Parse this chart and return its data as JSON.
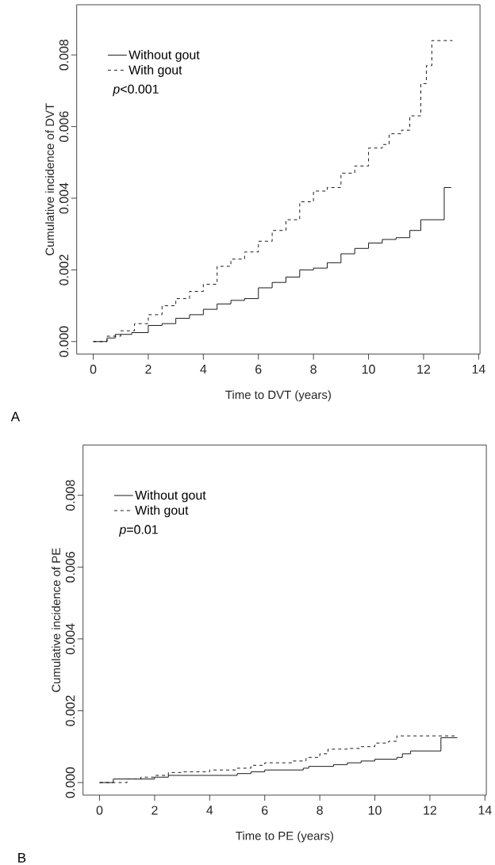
{
  "chart_data": [
    {
      "type": "step",
      "xlabel": "Time to DVT (years)",
      "ylabel": "Cumulative incidence of DVT",
      "annotations": [
        "*p*<0.001",
        "A"
      ],
      "xlim": [
        -0.6,
        14.05
      ],
      "ylim": [
        -0.00035,
        0.0094
      ],
      "xticks": [
        0,
        2,
        4,
        6,
        8,
        10,
        12,
        14
      ],
      "yticks": [
        {
          "value": 0,
          "label": "0.000"
        },
        {
          "value": 0.002,
          "label": "0.002"
        },
        {
          "value": 0.004,
          "label": "0.004"
        },
        {
          "value": 0.006,
          "label": "0.006"
        },
        {
          "value": 0.008,
          "label": "0.008"
        }
      ],
      "legend": "top left",
      "grid": false,
      "series": [
        {
          "name": "Without gout",
          "color": "#000000",
          "line_style": "solid",
          "x": [
            0,
            0.5,
            0.8,
            1.4,
            2,
            2.5,
            3,
            3.5,
            4,
            4.5,
            5,
            5.5,
            6,
            6.5,
            7,
            7.5,
            8,
            8.5,
            9,
            9.5,
            10,
            10.5,
            11,
            11.5,
            11.9,
            12.75,
            13
          ],
          "values": [
            0,
            0.0001,
            0.0002,
            0.00025,
            0.00045,
            0.0005,
            0.00065,
            0.00075,
            0.0009,
            0.00105,
            0.00115,
            0.0012,
            0.0015,
            0.00165,
            0.0018,
            0.002,
            0.00205,
            0.0022,
            0.00245,
            0.0026,
            0.00275,
            0.00285,
            0.0029,
            0.0031,
            0.0034,
            0.0043,
            0.0043
          ]
        },
        {
          "name": "With gout",
          "color": "#000000",
          "line_style": "dashed",
          "x": [
            0,
            0.5,
            1,
            1.5,
            2,
            2.5,
            3,
            3.5,
            4,
            4.5,
            5,
            5.5,
            6,
            6.5,
            7,
            7.5,
            8,
            8.5,
            9,
            9.5,
            10,
            10.5,
            10.75,
            11.2,
            11.5,
            11.9,
            12.1,
            12.3,
            13.05
          ],
          "values": [
            0,
            0.00015,
            0.0003,
            0.0005,
            0.00075,
            0.001,
            0.0012,
            0.0014,
            0.0016,
            0.0021,
            0.0023,
            0.0025,
            0.0028,
            0.0031,
            0.0034,
            0.0039,
            0.0042,
            0.0043,
            0.0047,
            0.0049,
            0.0054,
            0.0055,
            0.0058,
            0.0059,
            0.0063,
            0.0072,
            0.0077,
            0.0084,
            0.0084
          ]
        }
      ]
    },
    {
      "type": "step",
      "xlabel": "Time to PE (years)",
      "ylabel": "Cumulative incidence of PE",
      "annotations": [
        "*p*=0.01",
        "B"
      ],
      "xlim": [
        -0.6,
        14.05
      ],
      "ylim": [
        -0.00035,
        0.0094
      ],
      "xticks": [
        0,
        2,
        4,
        6,
        8,
        10,
        12,
        14
      ],
      "yticks": [
        {
          "value": 0,
          "label": "0.000"
        },
        {
          "value": 0.002,
          "label": "0.002"
        },
        {
          "value": 0.004,
          "label": "0.004"
        },
        {
          "value": 0.006,
          "label": "0.006"
        },
        {
          "value": 0.008,
          "label": "0.008"
        }
      ],
      "legend": "top left",
      "grid": false,
      "series": [
        {
          "name": "Without gout",
          "color": "#000000",
          "line_style": "solid",
          "x": [
            0,
            0.5,
            1,
            2,
            2.5,
            5,
            5.5,
            6,
            7.4,
            7.6,
            8.5,
            9,
            9.5,
            10,
            10.8,
            11,
            11.3,
            12.4,
            13
          ],
          "values": [
            0,
            0.0001,
            0.0001,
            0.00015,
            0.0002,
            0.00025,
            0.0003,
            0.00035,
            0.0004,
            0.00045,
            0.0005,
            0.00055,
            0.0006,
            0.00065,
            0.0007,
            0.0008,
            0.00088,
            0.00125,
            0.00125
          ]
        },
        {
          "name": "With gout",
          "color": "#000000",
          "line_style": "dashed",
          "x": [
            0,
            1,
            1.5,
            2,
            2.5,
            3,
            4,
            5,
            5.5,
            6,
            7,
            7.5,
            8,
            8.3,
            9,
            9.5,
            10,
            10.5,
            10.8,
            13
          ],
          "values": [
            0,
            0.0001,
            0.00015,
            0.0002,
            0.00028,
            0.0003,
            0.00035,
            0.0004,
            0.00048,
            0.00055,
            0.0006,
            0.0007,
            0.0008,
            0.00093,
            0.00095,
            0.001,
            0.0011,
            0.00115,
            0.0013,
            0.0013
          ]
        }
      ]
    }
  ]
}
